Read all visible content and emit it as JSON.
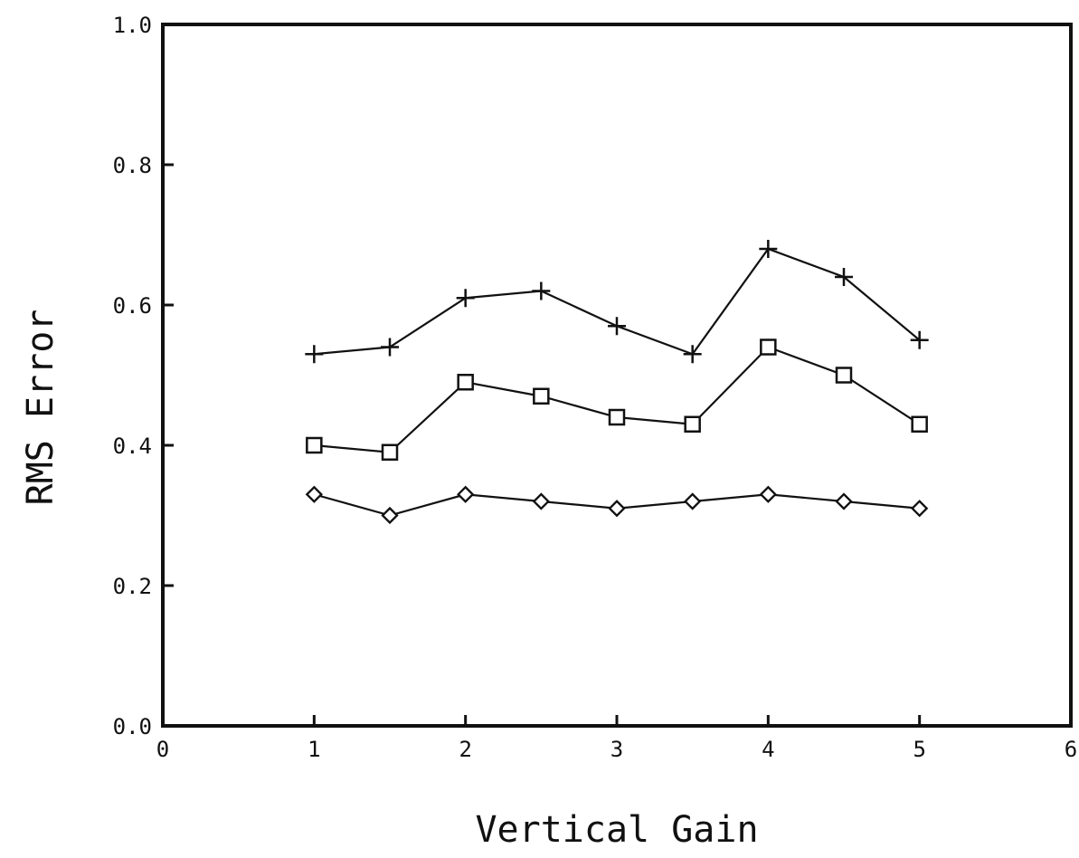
{
  "chart_data": {
    "type": "line",
    "title": "",
    "xlabel": "Vertical Gain",
    "ylabel": "RMS Error",
    "xlim": [
      0,
      6
    ],
    "ylim": [
      0.0,
      1.0
    ],
    "x_ticks": [
      "0",
      "1",
      "2",
      "3",
      "4",
      "5",
      "6"
    ],
    "y_ticks": [
      "0.0",
      "0.2",
      "0.4",
      "0.6",
      "0.8",
      "1.0"
    ],
    "grid": false,
    "x": [
      1,
      1.5,
      2,
      2.5,
      3,
      3.5,
      4,
      4.5,
      5
    ],
    "series": [
      {
        "marker": "plus",
        "values": [
          0.53,
          0.54,
          0.61,
          0.62,
          0.57,
          0.53,
          0.68,
          0.64,
          0.55
        ]
      },
      {
        "marker": "square",
        "values": [
          0.4,
          0.39,
          0.49,
          0.47,
          0.44,
          0.43,
          0.54,
          0.5,
          0.43
        ]
      },
      {
        "marker": "diamond",
        "values": [
          0.33,
          0.3,
          0.33,
          0.32,
          0.31,
          0.32,
          0.33,
          0.32,
          0.31
        ]
      }
    ],
    "colors": {
      "line": "#111111",
      "background": "#ffffff"
    }
  }
}
